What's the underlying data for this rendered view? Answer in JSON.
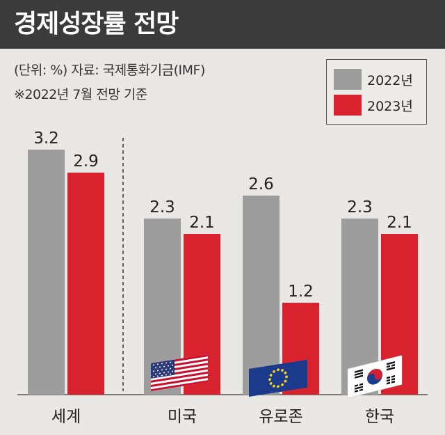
{
  "title": "경제성장률 전망",
  "notes": {
    "unit_source": "(단위: %)  자료: 국제통화기금(IMF)",
    "basis": "※2022년 7월 전망 기준"
  },
  "colors": {
    "y2022": "#9d9d9d",
    "y2023": "#d8232e"
  },
  "chart_data": {
    "type": "bar",
    "title": "경제성장률 전망",
    "categories": [
      "세계",
      "미국",
      "유로존",
      "한국"
    ],
    "series": [
      {
        "name": "2022년",
        "values": [
          3.2,
          2.3,
          2.6,
          2.3
        ]
      },
      {
        "name": "2023년",
        "values": [
          2.9,
          2.1,
          1.2,
          2.1
        ]
      }
    ],
    "value_labels": [
      [
        "3.2",
        "2.3",
        "2.6",
        "2.3"
      ],
      [
        "2.9",
        "2.1",
        "1.2",
        "2.1"
      ]
    ],
    "legend_position": "top-right",
    "ylim": [
      0,
      3.2
    ],
    "grid": false,
    "flags": [
      "",
      "us-flag-icon",
      "eu-flag-icon",
      "kr-flag-icon"
    ]
  }
}
